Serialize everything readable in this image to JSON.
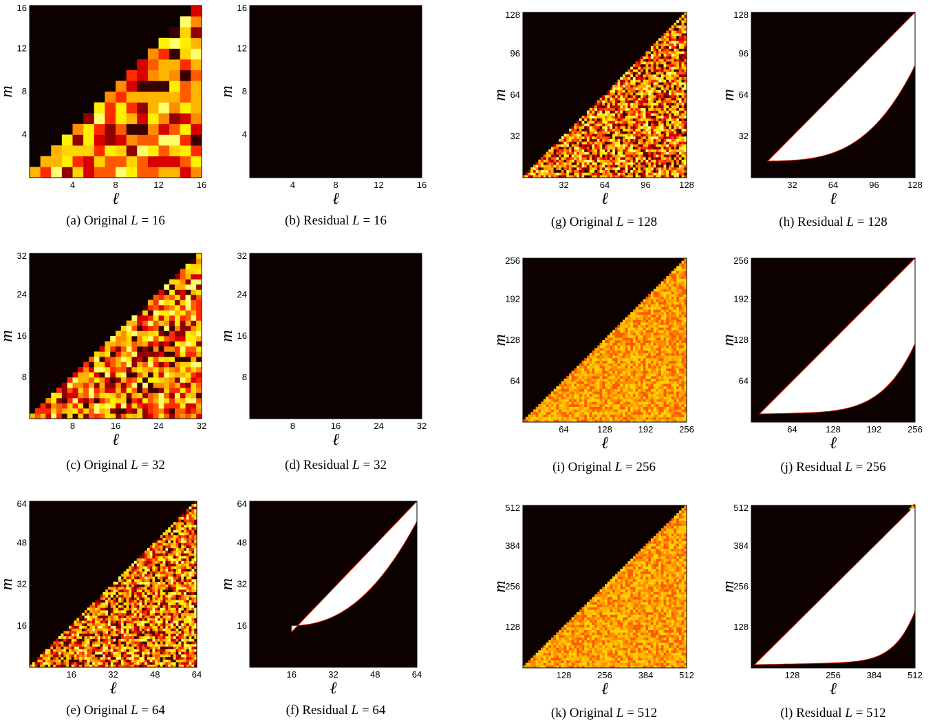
{
  "figure": {
    "colors": {
      "black": "#0d0100",
      "white": "#ffffff",
      "palette": [
        "#3a0000",
        "#8f0000",
        "#d80000",
        "#ff2a00",
        "#ff5a00",
        "#ff8c00",
        "#ffb400",
        "#ffd400",
        "#fff000",
        "#ffff70"
      ]
    },
    "panels": [
      {
        "id": "a",
        "letter": "(a)",
        "kind": "Original",
        "L": 16,
        "L_text": "16",
        "m_label": "m",
        "l_label": "ℓ",
        "ticks": [
          "4",
          "8",
          "12",
          "16"
        ],
        "tick_values": [
          4,
          8,
          12,
          16
        ]
      },
      {
        "id": "b",
        "letter": "(b)",
        "kind": "Residual",
        "L": 16,
        "L_text": "16",
        "m_label": "m",
        "l_label": "ℓ",
        "ticks": [
          "4",
          "8",
          "12",
          "16"
        ],
        "tick_values": [
          4,
          8,
          12,
          16
        ]
      },
      {
        "id": "c",
        "letter": "(c)",
        "kind": "Original",
        "L": 32,
        "L_text": "32",
        "m_label": "m",
        "l_label": "ℓ",
        "ticks": [
          "8",
          "16",
          "24",
          "32"
        ],
        "tick_values": [
          8,
          16,
          24,
          32
        ]
      },
      {
        "id": "d",
        "letter": "(d)",
        "kind": "Residual",
        "L": 32,
        "L_text": "32",
        "m_label": "m",
        "l_label": "ℓ",
        "ticks": [
          "8",
          "16",
          "24",
          "32"
        ],
        "tick_values": [
          8,
          16,
          24,
          32
        ]
      },
      {
        "id": "e",
        "letter": "(e)",
        "kind": "Original",
        "L": 64,
        "L_text": "64",
        "m_label": "m",
        "l_label": "ℓ",
        "ticks": [
          "16",
          "32",
          "48",
          "64"
        ],
        "tick_values": [
          16,
          32,
          48,
          64
        ]
      },
      {
        "id": "f",
        "letter": "(f)",
        "kind": "Residual",
        "L": 64,
        "L_text": "64",
        "m_label": "m",
        "l_label": "ℓ",
        "ticks": [
          "16",
          "32",
          "48",
          "64"
        ],
        "tick_values": [
          16,
          32,
          48,
          64
        ]
      },
      {
        "id": "g",
        "letter": "(g)",
        "kind": "Original",
        "L": 128,
        "L_text": "128",
        "m_label": "m",
        "l_label": "ℓ",
        "ticks": [
          "32",
          "64",
          "96",
          "128"
        ],
        "tick_values": [
          32,
          64,
          96,
          128
        ]
      },
      {
        "id": "h",
        "letter": "(h)",
        "kind": "Residual",
        "L": 128,
        "L_text": "128",
        "m_label": "m",
        "l_label": "ℓ",
        "ticks": [
          "32",
          "64",
          "96",
          "128"
        ],
        "tick_values": [
          32,
          64,
          96,
          128
        ]
      },
      {
        "id": "i",
        "letter": "(i)",
        "kind": "Original",
        "L": 256,
        "L_text": "256",
        "m_label": "m",
        "l_label": "ℓ",
        "ticks": [
          "64",
          "128",
          "192",
          "256"
        ],
        "tick_values": [
          64,
          128,
          192,
          256
        ]
      },
      {
        "id": "j",
        "letter": "(j)",
        "kind": "Residual",
        "L": 256,
        "L_text": "256",
        "m_label": "m",
        "l_label": "ℓ",
        "ticks": [
          "64",
          "128",
          "192",
          "256"
        ],
        "tick_values": [
          64,
          128,
          192,
          256
        ]
      },
      {
        "id": "k",
        "letter": "(k)",
        "kind": "Original",
        "L": 512,
        "L_text": "512",
        "m_label": "m",
        "l_label": "ℓ",
        "ticks": [
          "128",
          "256",
          "384",
          "512"
        ],
        "tick_values": [
          128,
          256,
          384,
          512
        ]
      },
      {
        "id": "l",
        "letter": "(l)",
        "kind": "Residual",
        "L": 512,
        "L_text": "512",
        "m_label": "m",
        "l_label": "ℓ",
        "ticks": [
          "128",
          "256",
          "384",
          "512"
        ],
        "tick_values": [
          128,
          256,
          384,
          512
        ]
      }
    ]
  }
}
